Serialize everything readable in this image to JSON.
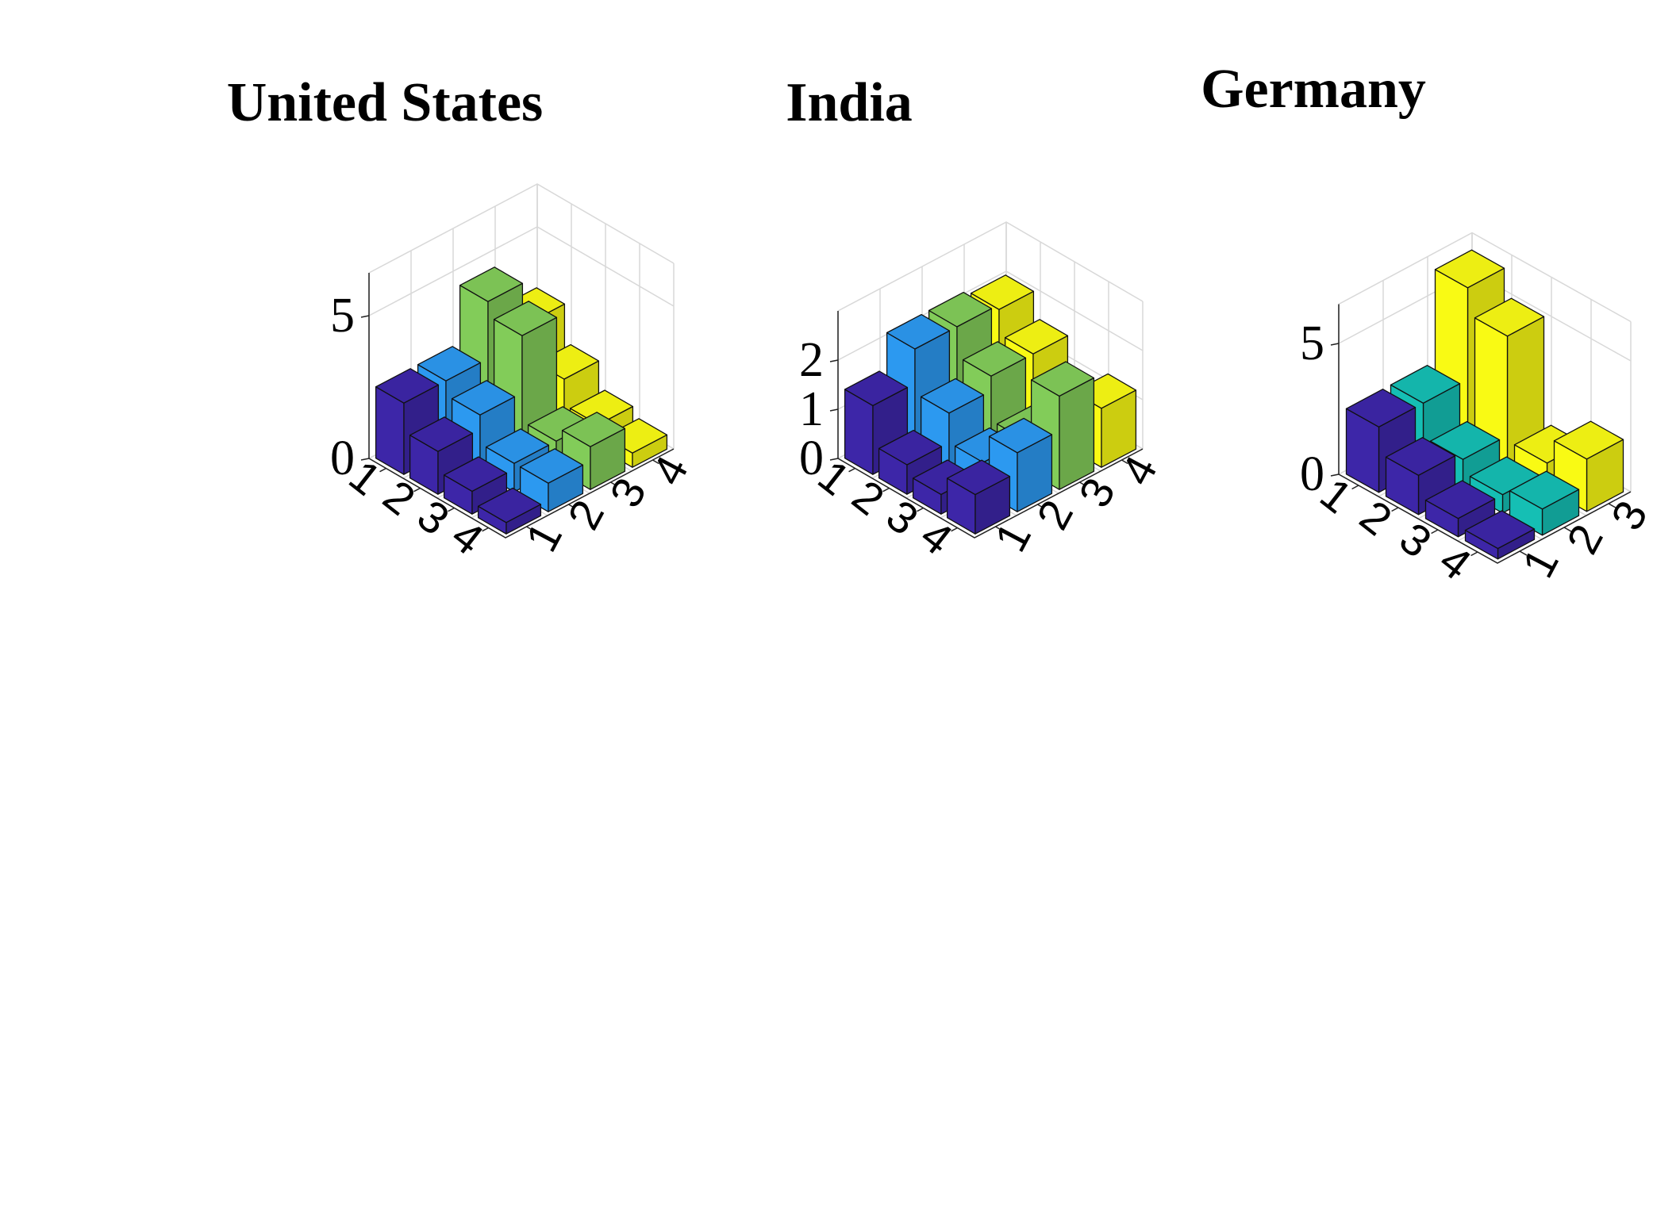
{
  "chart_data": [
    {
      "type": "bar3",
      "title": "United States",
      "x_ticks": [
        "1",
        "2",
        "3",
        "4"
      ],
      "y_ticks": [
        "1",
        "2",
        "3",
        "4"
      ],
      "z_ticks": [
        "0",
        "5"
      ],
      "zlim": [
        0,
        6.5
      ],
      "colors": [
        "#3d26a8",
        "#2c99f0",
        "#82cc59",
        "#f9fa14"
      ],
      "values": [
        [
          2.5,
          1.5,
          0.8,
          0.4
        ],
        [
          2.5,
          2.0,
          1.0,
          1.0
        ],
        [
          4.5,
          4.0,
          1.0,
          1.5
        ],
        [
          3.0,
          1.7,
          0.8,
          0.5
        ]
      ]
    },
    {
      "type": "bar3",
      "title": "India",
      "x_ticks": [
        "1",
        "2",
        "3",
        "4"
      ],
      "y_ticks": [
        "1",
        "2",
        "3",
        "4"
      ],
      "z_ticks": [
        "0",
        "1",
        "2"
      ],
      "zlim": [
        0,
        3
      ],
      "colors": [
        "#3d26a8",
        "#2c99f0",
        "#82cc59",
        "#f9fa14"
      ],
      "values": [
        [
          1.4,
          0.6,
          0.4,
          0.8
        ],
        [
          2.1,
          1.2,
          0.6,
          1.2
        ],
        [
          2.1,
          1.5,
          0.6,
          1.9
        ],
        [
          2.0,
          1.5,
          0.3,
          1.2
        ]
      ]
    },
    {
      "type": "bar3",
      "title": "Germany",
      "x_ticks": [
        "1",
        "2",
        "3"
      ],
      "y_ticks": [
        "1",
        "2",
        "3",
        "4"
      ],
      "z_ticks": [
        "0",
        "5"
      ],
      "zlim": [
        0,
        6.5
      ],
      "colors": [
        "#3d26a8",
        "#15bfb4",
        "#f9fa14"
      ],
      "values": [
        [
          2.5,
          1.5,
          0.7,
          0.4
        ],
        [
          2.5,
          1.2,
          0.7,
          1.0
        ],
        [
          6.0,
          5.0,
          1.0,
          2.0
        ]
      ]
    }
  ]
}
